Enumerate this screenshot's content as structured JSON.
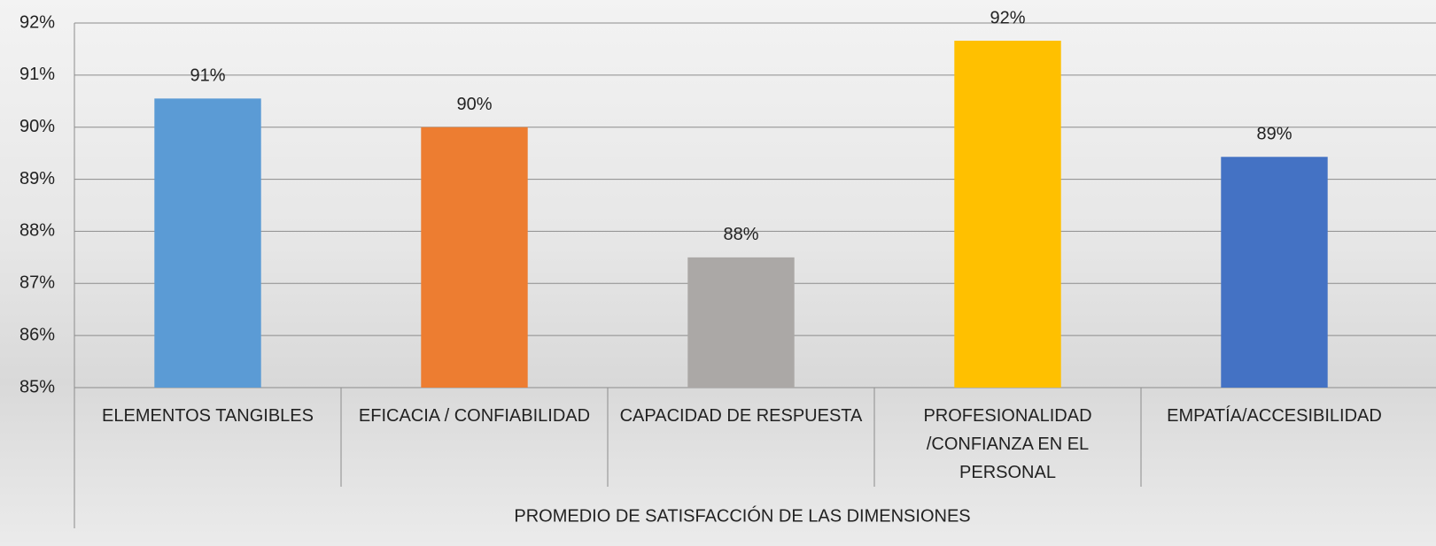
{
  "chart_data": {
    "type": "bar",
    "categories": [
      "ELEMENTOS TANGIBLES",
      "EFICACIA / CONFIABILIDAD",
      "CAPACIDAD DE RESPUESTA",
      "PROFESIONALIDAD /CONFIANZA EN EL PERSONAL",
      "EMPATÍA/ACCESIBILIDAD"
    ],
    "values": [
      90.55,
      90.0,
      87.5,
      91.66,
      89.43
    ],
    "value_labels": [
      "91%",
      "90%",
      "88%",
      "92%",
      "89%"
    ],
    "colors": [
      "#5b9bd5",
      "#ed7d31",
      "#aba8a6",
      "#ffc000",
      "#4472c4"
    ],
    "x_label": "PROMEDIO DE SATISFACCIÓN DE LAS DIMENSIONES",
    "ylim": [
      85,
      92
    ],
    "yticks": [
      {
        "value": 85,
        "label": "85%"
      },
      {
        "value": 86,
        "label": "86%"
      },
      {
        "value": 87,
        "label": "87%"
      },
      {
        "value": 88,
        "label": "88%"
      },
      {
        "value": 89,
        "label": "89%"
      },
      {
        "value": 90,
        "label": "90%"
      },
      {
        "value": 91,
        "label": "91%"
      },
      {
        "value": 92,
        "label": "92%"
      }
    ],
    "grid": true
  }
}
